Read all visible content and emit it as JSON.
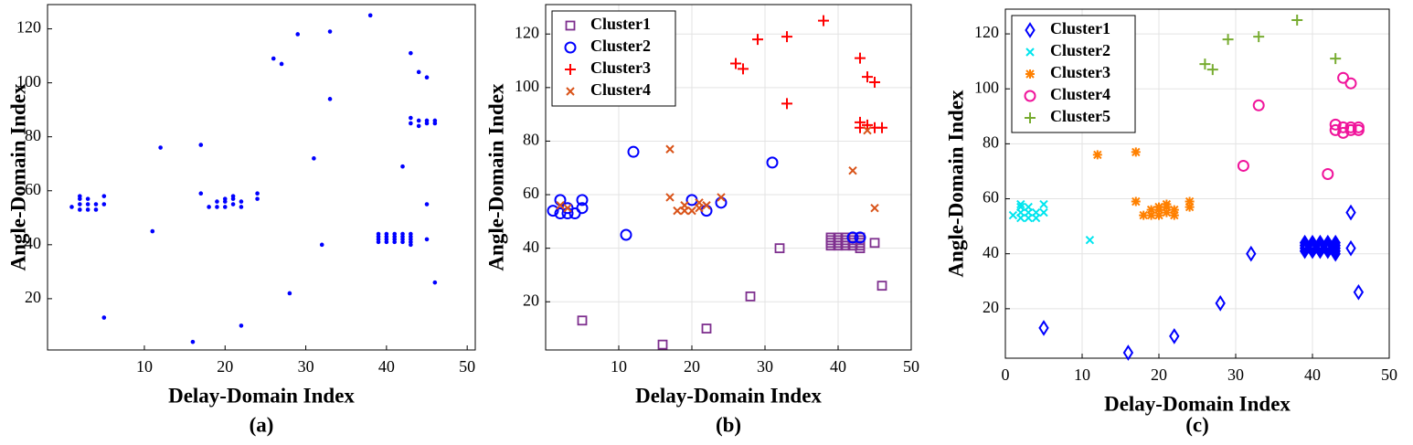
{
  "chart_data": [
    {
      "type": "scatter",
      "xlabel": "Delay-Domain Index",
      "ylabel": "Angle-Domain Index",
      "caption": "(a)",
      "xlim": [
        -2,
        51
      ],
      "ylim": [
        1,
        129
      ],
      "xticks": [
        10,
        20,
        30,
        40,
        50
      ],
      "yticks": [
        20,
        40,
        60,
        80,
        100,
        120
      ],
      "grid": false,
      "series": [
        {
          "color": "#0000ff",
          "marker": "dot",
          "x": [
            5,
            16,
            22,
            28,
            32,
            45,
            45,
            46,
            43,
            39,
            40,
            41,
            42,
            43,
            39,
            40,
            41,
            42,
            43,
            39,
            40,
            41,
            42,
            43,
            39,
            40,
            41,
            42,
            43,
            1,
            2,
            2,
            2,
            2,
            3,
            3,
            3,
            4,
            4,
            5,
            5,
            11,
            12,
            17,
            17,
            18,
            19,
            19,
            20,
            20,
            20,
            21,
            21,
            21,
            22,
            22,
            24,
            24,
            31,
            33,
            42,
            44,
            45,
            43,
            43,
            44,
            44,
            45,
            45,
            46,
            46,
            26,
            27,
            29,
            33,
            38,
            43
          ],
          "y": [
            13,
            4,
            10,
            22,
            40,
            42,
            55,
            26,
            40,
            41,
            41,
            41,
            41,
            41,
            42,
            42,
            42,
            42,
            42,
            43,
            43,
            43,
            43,
            43,
            44,
            44,
            44,
            44,
            44,
            54,
            53,
            55,
            57,
            58,
            53,
            55,
            57,
            53,
            55,
            55,
            58,
            45,
            76,
            77,
            59,
            54,
            54,
            56,
            54,
            56,
            57,
            55,
            57,
            58,
            54,
            56,
            57,
            59,
            72,
            94,
            69,
            104,
            102,
            85,
            87,
            84,
            86,
            85,
            86,
            85,
            86,
            109,
            107,
            118,
            119,
            125,
            111
          ]
        }
      ]
    },
    {
      "type": "scatter",
      "xlabel": "Delay-Domain Index",
      "ylabel": "Angle-Domain Index",
      "caption": "(b)",
      "xlim": [
        0,
        50
      ],
      "ylim": [
        2,
        131
      ],
      "xticks": [
        10,
        20,
        30,
        40,
        50
      ],
      "yticks": [
        20,
        40,
        60,
        80,
        100,
        120
      ],
      "grid": true,
      "legend": "upper left",
      "series": [
        {
          "name": "Cluster1",
          "color": "#7e2f8e",
          "marker": "square",
          "x": [
            5,
            16,
            22,
            28,
            32,
            45,
            46,
            43,
            39,
            40,
            41,
            42,
            43,
            39,
            40,
            41,
            42,
            43,
            39,
            40,
            41,
            42,
            43,
            39,
            40,
            41,
            42,
            43
          ],
          "y": [
            13,
            4,
            10,
            22,
            40,
            42,
            26,
            40,
            41,
            41,
            41,
            41,
            41,
            42,
            42,
            42,
            42,
            42,
            43,
            43,
            43,
            43,
            43,
            44,
            44,
            44,
            44,
            44
          ]
        },
        {
          "name": "Cluster2",
          "color": "#0000ff",
          "marker": "circle",
          "x": [
            1,
            2,
            2,
            3,
            3,
            4,
            5,
            5,
            11,
            12,
            20,
            22,
            24,
            31,
            42,
            43
          ],
          "y": [
            54,
            53,
            58,
            53,
            55,
            53,
            55,
            58,
            45,
            76,
            58,
            54,
            57,
            72,
            44,
            44
          ]
        },
        {
          "name": "Cluster3",
          "color": "#ff0000",
          "marker": "plus",
          "x": [
            26,
            27,
            29,
            33,
            38,
            43,
            33,
            44,
            45,
            43,
            43,
            44,
            45,
            46
          ],
          "y": [
            109,
            107,
            118,
            119,
            125,
            111,
            94,
            104,
            102,
            87,
            85,
            86,
            85,
            85
          ]
        },
        {
          "name": "Cluster4",
          "color": "#d95319",
          "marker": "x",
          "x": [
            17,
            17,
            2,
            3,
            18,
            19,
            19,
            20,
            21,
            21,
            22,
            24,
            42,
            45,
            44
          ],
          "y": [
            77,
            59,
            56,
            55,
            54,
            54,
            56,
            54,
            55,
            57,
            56,
            59,
            69,
            55,
            84
          ]
        }
      ]
    },
    {
      "type": "scatter",
      "xlabel": "Delay-Domain Index",
      "ylabel": "Angle-Domain Index",
      "caption": "(c)",
      "xlim": [
        0,
        50
      ],
      "ylim": [
        2,
        129
      ],
      "xticks": [
        0,
        10,
        20,
        30,
        40,
        50
      ],
      "yticks": [
        20,
        40,
        60,
        80,
        100,
        120
      ],
      "grid": true,
      "legend": "upper left",
      "series": [
        {
          "name": "Cluster1",
          "color": "#0000ff",
          "marker": "diamond",
          "x": [
            5,
            16,
            22,
            28,
            32,
            45,
            45,
            46,
            43,
            39,
            40,
            41,
            42,
            43,
            39,
            40,
            41,
            42,
            43,
            39,
            40,
            41,
            42,
            43,
            39,
            40,
            41,
            42,
            43
          ],
          "y": [
            13,
            4,
            10,
            22,
            40,
            42,
            55,
            26,
            40,
            41,
            41,
            41,
            41,
            41,
            42,
            42,
            42,
            42,
            42,
            43,
            43,
            43,
            43,
            43,
            44,
            44,
            44,
            44,
            44
          ]
        },
        {
          "name": "Cluster2",
          "color": "#00e5ee",
          "marker": "x",
          "x": [
            1,
            2,
            2,
            2,
            2,
            3,
            3,
            3,
            4,
            4,
            5,
            5,
            11
          ],
          "y": [
            54,
            53,
            55,
            57,
            58,
            53,
            55,
            57,
            53,
            55,
            55,
            58,
            45
          ]
        },
        {
          "name": "Cluster3",
          "color": "#ff8000",
          "marker": "asterisk",
          "x": [
            12,
            17,
            17,
            18,
            19,
            19,
            20,
            20,
            20,
            21,
            21,
            21,
            22,
            22,
            24,
            24
          ],
          "y": [
            76,
            77,
            59,
            54,
            54,
            56,
            54,
            56,
            57,
            55,
            57,
            58,
            54,
            56,
            57,
            59
          ]
        },
        {
          "name": "Cluster4",
          "color": "#f0149b",
          "marker": "circle",
          "x": [
            31,
            33,
            42,
            44,
            45,
            43,
            43,
            44,
            44,
            45,
            45,
            46,
            46
          ],
          "y": [
            72,
            94,
            69,
            104,
            102,
            85,
            87,
            84,
            86,
            85,
            86,
            85,
            86
          ]
        },
        {
          "name": "Cluster5",
          "color": "#77ac30",
          "marker": "plus",
          "x": [
            26,
            27,
            29,
            33,
            38,
            43
          ],
          "y": [
            109,
            107,
            118,
            119,
            125,
            111
          ]
        }
      ]
    }
  ]
}
